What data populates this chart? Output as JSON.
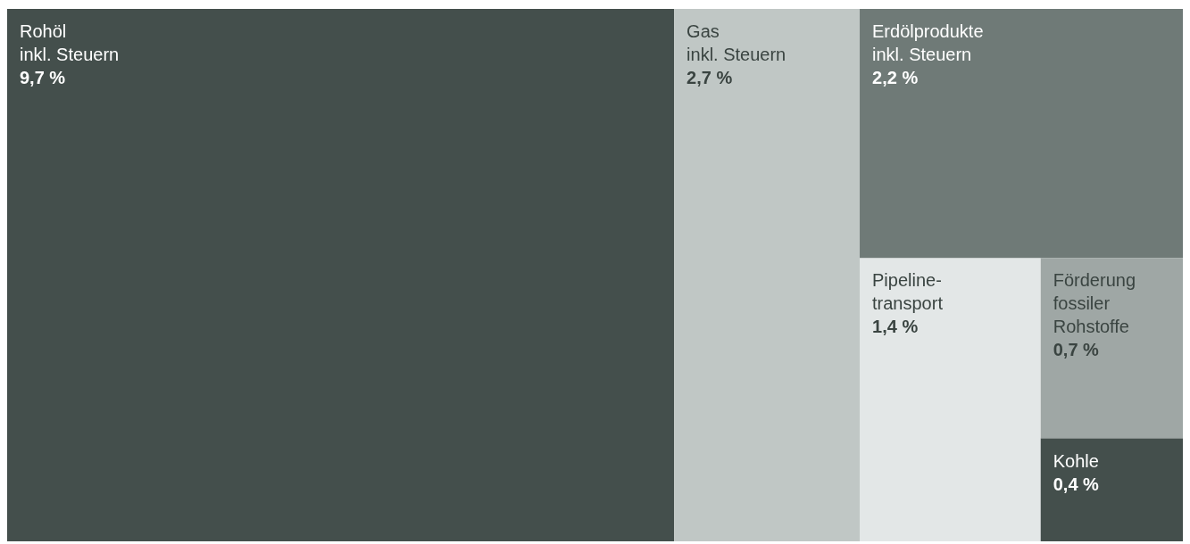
{
  "chart_data": {
    "type": "other",
    "categories": [
      "Rohöl\ninkl. Steuern",
      "Gas\ninkl. Steuern",
      "Erdölprodukte\ninkl. Steuern",
      "Pipeline-\ntransport",
      "Förderung\nfossiler\nRohstoffe",
      "Kohle"
    ],
    "values": [
      9.7,
      2.7,
      2.2,
      1.4,
      0.7,
      0.4
    ],
    "colors": [
      "#444f4c",
      "#c0c7c5",
      "#6f7a77",
      "#e3e7e7",
      "#9fa7a5",
      "#444f4c"
    ],
    "value_labels": [
      "9,7 %",
      "2,7 %",
      "2,2 %",
      "1,4 %",
      "0,7 %",
      "0,4 %"
    ]
  }
}
